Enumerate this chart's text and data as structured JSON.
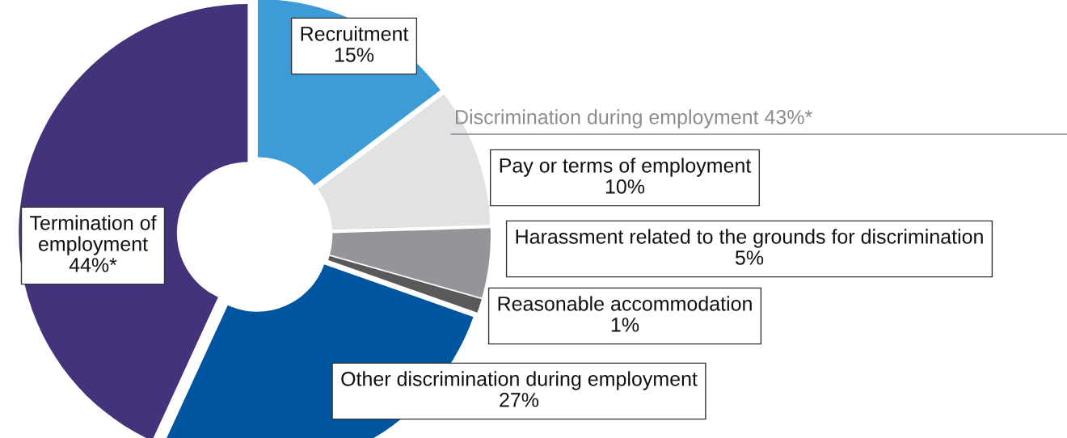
{
  "chart_data": {
    "type": "donut",
    "categories": [
      "Recruitment",
      "Pay or terms of employment",
      "Harassment related to the grounds for discrimination",
      "Reasonable accommodation",
      "Other discrimination during employment",
      "Termination of employment"
    ],
    "values": [
      15,
      10,
      5,
      1,
      27,
      44
    ],
    "value_labels": [
      "15%",
      "10%",
      "5%",
      "1%",
      "27%",
      "44%*"
    ],
    "colors": [
      "#3d9cd7",
      "#e1e2e4",
      "#939598",
      "#58595b",
      "#0055a0",
      "#44327a"
    ],
    "annotations": [
      "Discrimination during employment 43%*"
    ],
    "legend": false
  }
}
